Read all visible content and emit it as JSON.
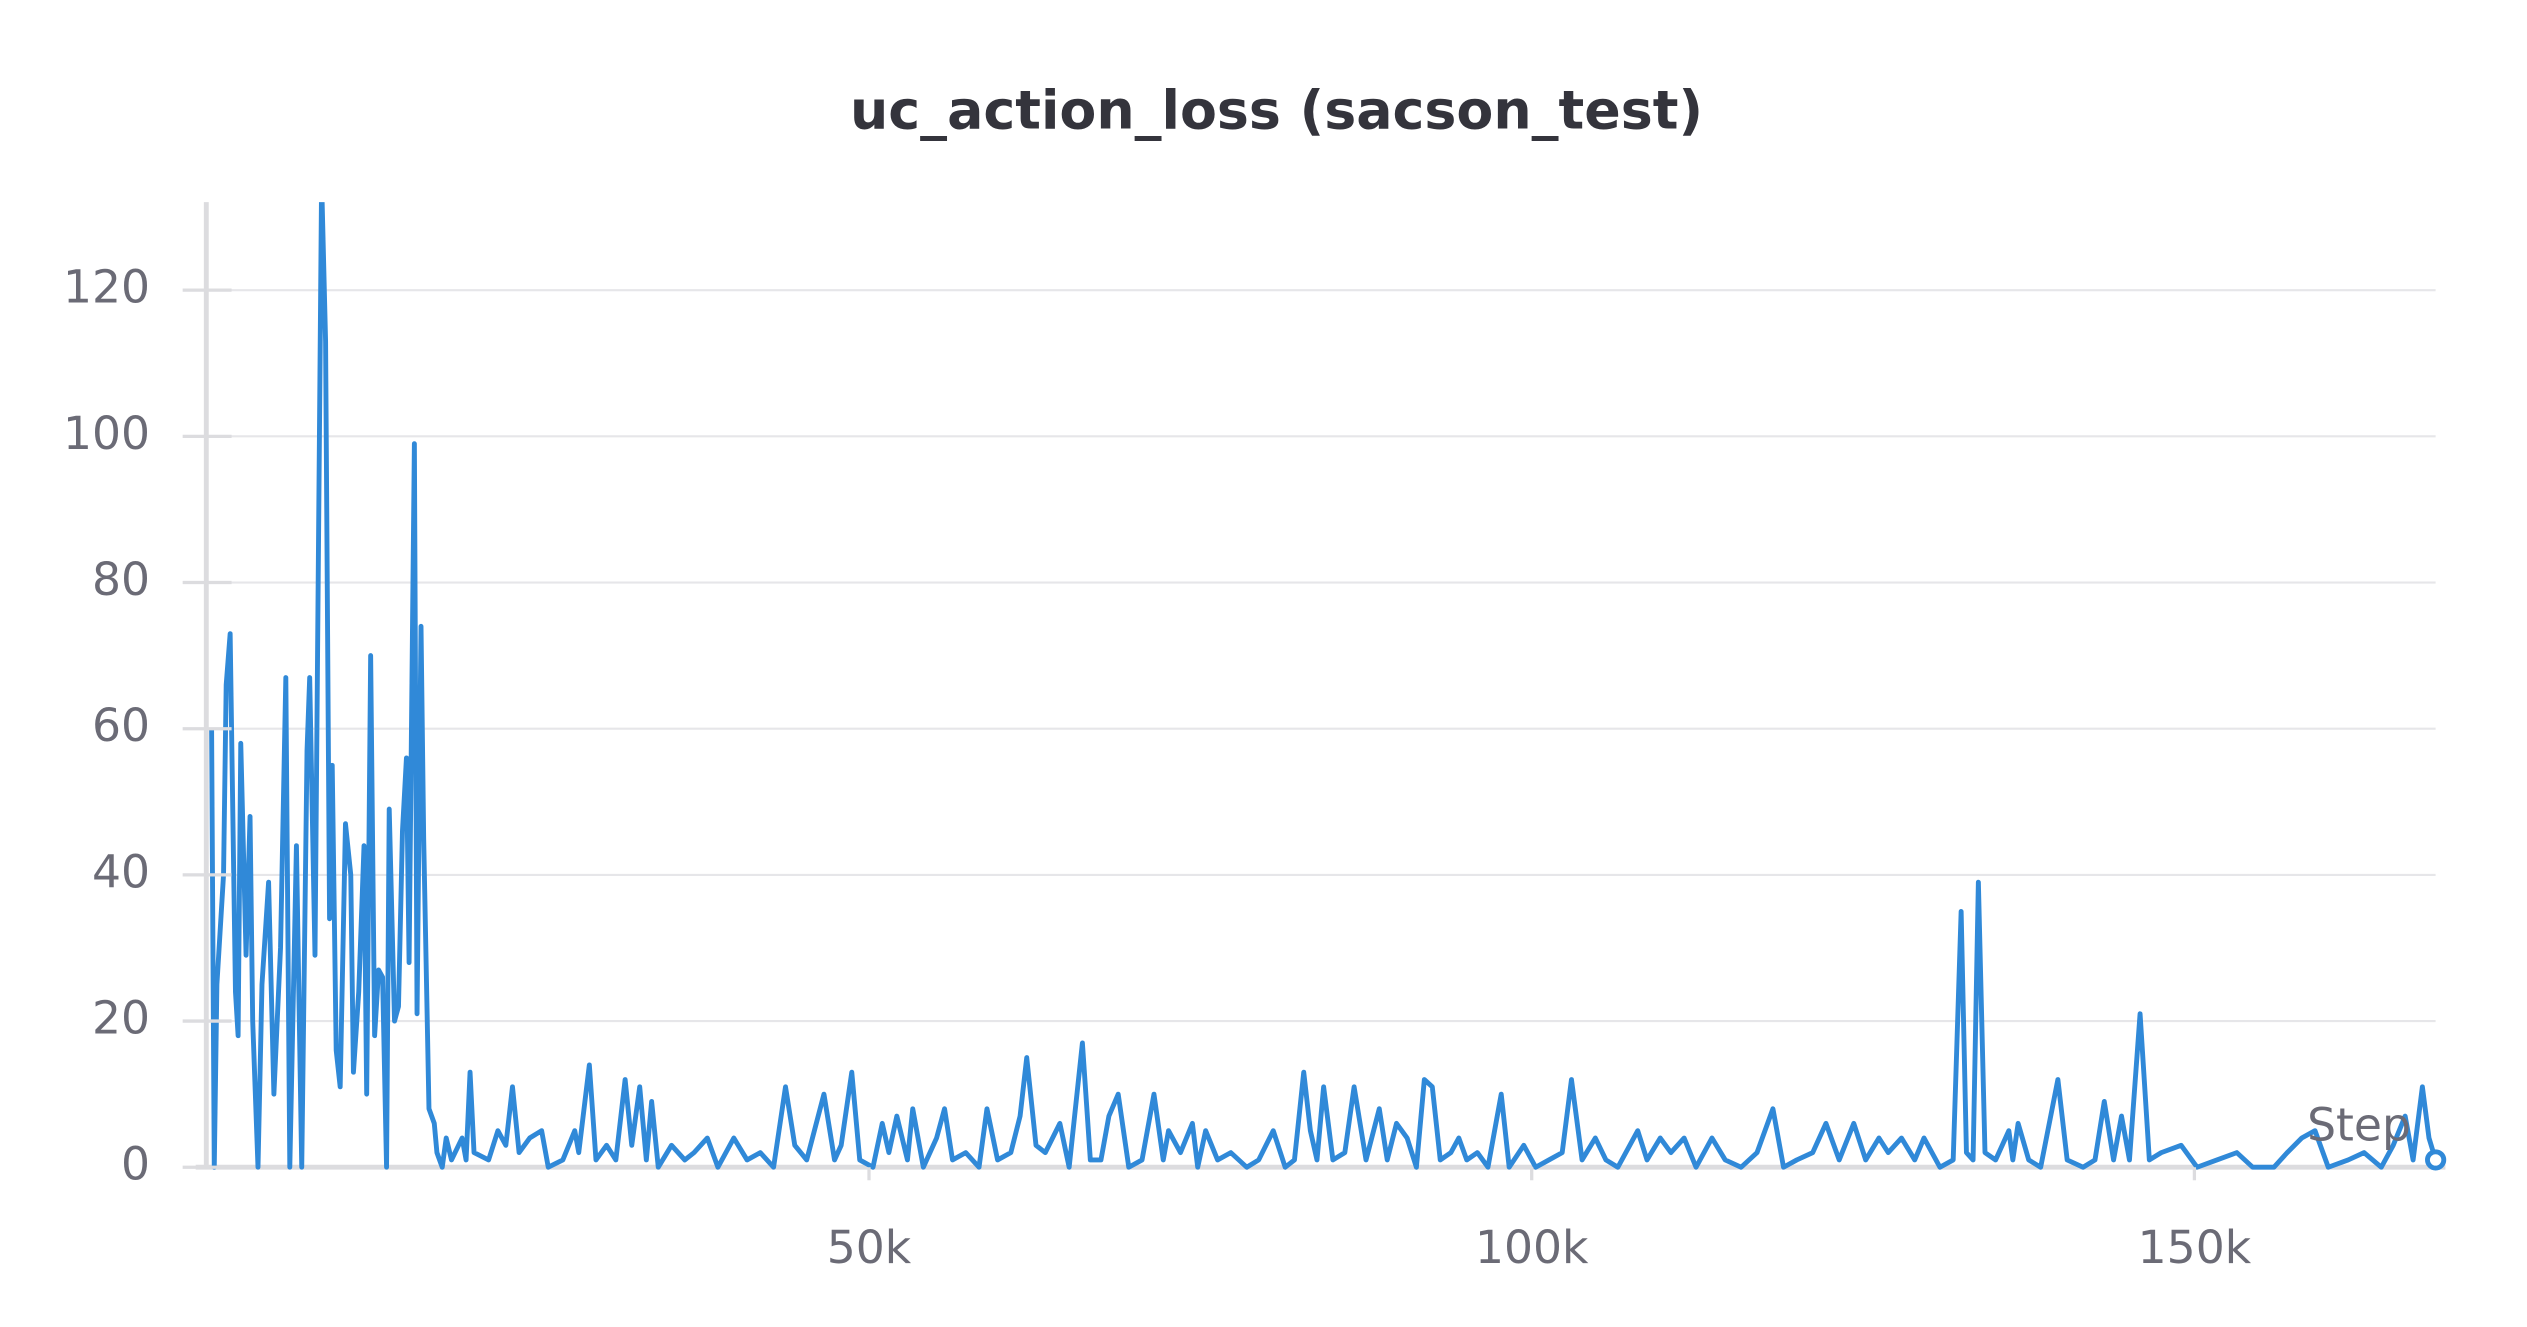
{
  "chart_data": {
    "type": "line",
    "title": "uc_action_loss (sacson_test)",
    "xlabel": "Step",
    "color": "#3089d8",
    "grid": true,
    "xlim": [
      0,
      168200
    ],
    "ylim": [
      0,
      132
    ],
    "xticks": [
      {
        "value": 50000,
        "label": "50k"
      },
      {
        "value": 100000,
        "label": "100k"
      },
      {
        "value": 150000,
        "label": "150k"
      }
    ],
    "yticks": [
      0,
      20,
      40,
      60,
      80,
      100,
      120
    ],
    "x": [
      400,
      600,
      800,
      1300,
      1500,
      1800,
      2200,
      2400,
      2600,
      3000,
      3300,
      3500,
      3900,
      4200,
      4700,
      5100,
      5600,
      6000,
      6300,
      6800,
      7200,
      7600,
      7800,
      8200,
      8700,
      9000,
      9300,
      9500,
      9800,
      10100,
      10500,
      10900,
      11100,
      11500,
      11900,
      12100,
      12400,
      12700,
      13000,
      13300,
      13600,
      13800,
      14200,
      14500,
      14800,
      15100,
      15300,
      15700,
      15900,
      16200,
      16400,
      16800,
      17200,
      17400,
      17800,
      18100,
      18500,
      19300,
      19600,
      19900,
      20200,
      21300,
      22000,
      22600,
      23100,
      23600,
      24400,
      25300,
      25800,
      26900,
      27800,
      28100,
      28900,
      29400,
      30200,
      30900,
      31600,
      32100,
      32700,
      33200,
      33600,
      34100,
      35100,
      36100,
      36800,
      37800,
      38600,
      39800,
      40800,
      41800,
      42800,
      43700,
      44400,
      45300,
      46600,
      47400,
      47900,
      48700,
      49300,
      50300,
      51000,
      51500,
      52100,
      52900,
      53300,
      54100,
      55100,
      55700,
      56300,
      57300,
      58300,
      58900,
      59700,
      60700,
      61400,
      61900,
      62600,
      63300,
      64400,
      65100,
      66100,
      66700,
      67500,
      68100,
      68800,
      69600,
      70600,
      71500,
      72200,
      72600,
      73500,
      74400,
      74800,
      75400,
      76300,
      77300,
      78500,
      79400,
      80500,
      81400,
      82100,
      82800,
      83300,
      83800,
      84300,
      85000,
      85900,
      86600,
      87500,
      88500,
      89100,
      89800,
      90600,
      91300,
      91900,
      92500,
      93100,
      93900,
      94500,
      95100,
      95900,
      96700,
      97700,
      98300,
      99400,
      100300,
      101300,
      102300,
      103000,
      103800,
      104800,
      105600,
      106500,
      108000,
      108700,
      109700,
      110500,
      111500,
      112400,
      113600,
      114600,
      115800,
      117000,
      118200,
      119000,
      120000,
      121200,
      122200,
      123200,
      124300,
      125200,
      126200,
      126900,
      127900,
      128900,
      129600,
      130800,
      131800,
      132400,
      132800,
      133300,
      133700,
      134200,
      135000,
      136000,
      136300,
      136700,
      137500,
      138400,
      139700,
      140400,
      141600,
      142500,
      143200,
      143900,
      144500,
      145100,
      145900,
      146600,
      147500,
      149000,
      150200,
      151700,
      153200,
      154400,
      156000,
      157000,
      158100,
      159100,
      160100,
      161600,
      162800,
      164100,
      165000,
      165900,
      166500,
      167200,
      167700,
      168200
    ],
    "values": [
      60,
      0,
      25,
      40,
      66,
      73,
      24,
      18,
      58,
      29,
      48,
      20,
      0,
      25,
      39,
      10,
      30,
      67,
      0,
      44,
      0,
      57,
      67,
      29,
      135,
      113,
      34,
      55,
      16,
      11,
      47,
      40,
      13,
      24,
      44,
      10,
      70,
      18,
      27,
      26,
      0,
      49,
      20,
      22,
      46,
      56,
      28,
      99,
      21,
      74,
      45,
      8,
      6,
      2,
      0,
      4,
      1,
      4,
      1,
      13,
      2,
      1,
      5,
      3,
      11,
      2,
      4,
      5,
      0,
      1,
      5,
      2,
      14,
      1,
      3,
      1,
      12,
      3,
      11,
      1,
      9,
      0,
      3,
      1,
      2,
      4,
      0,
      4,
      1,
      2,
      0,
      11,
      3,
      1,
      10,
      1,
      3,
      13,
      1,
      0,
      6,
      2,
      7,
      1,
      8,
      0,
      4,
      8,
      1,
      2,
      0,
      8,
      1,
      2,
      7,
      15,
      3,
      2,
      6,
      0,
      17,
      1,
      1,
      7,
      10,
      0,
      1,
      10,
      1,
      5,
      2,
      6,
      0,
      5,
      1,
      2,
      0,
      1,
      5,
      0,
      1,
      13,
      5,
      1,
      11,
      1,
      2,
      11,
      1,
      8,
      1,
      6,
      4,
      0,
      12,
      11,
      1,
      2,
      4,
      1,
      2,
      0,
      10,
      0,
      3,
      0,
      1,
      2,
      12,
      1,
      4,
      1,
      0,
      5,
      1,
      4,
      2,
      4,
      0,
      4,
      1,
      0,
      2,
      8,
      0,
      1,
      2,
      6,
      1,
      6,
      1,
      4,
      2,
      4,
      1,
      4,
      0,
      1,
      35,
      2,
      1,
      39,
      2,
      1,
      5,
      1,
      6,
      1,
      0,
      12,
      1,
      0,
      1,
      9,
      1,
      7,
      1,
      21,
      1,
      2,
      3,
      0,
      1,
      2,
      0,
      0,
      2,
      4,
      5,
      0,
      1,
      2,
      0,
      3,
      7,
      1,
      11,
      4,
      1
    ]
  }
}
